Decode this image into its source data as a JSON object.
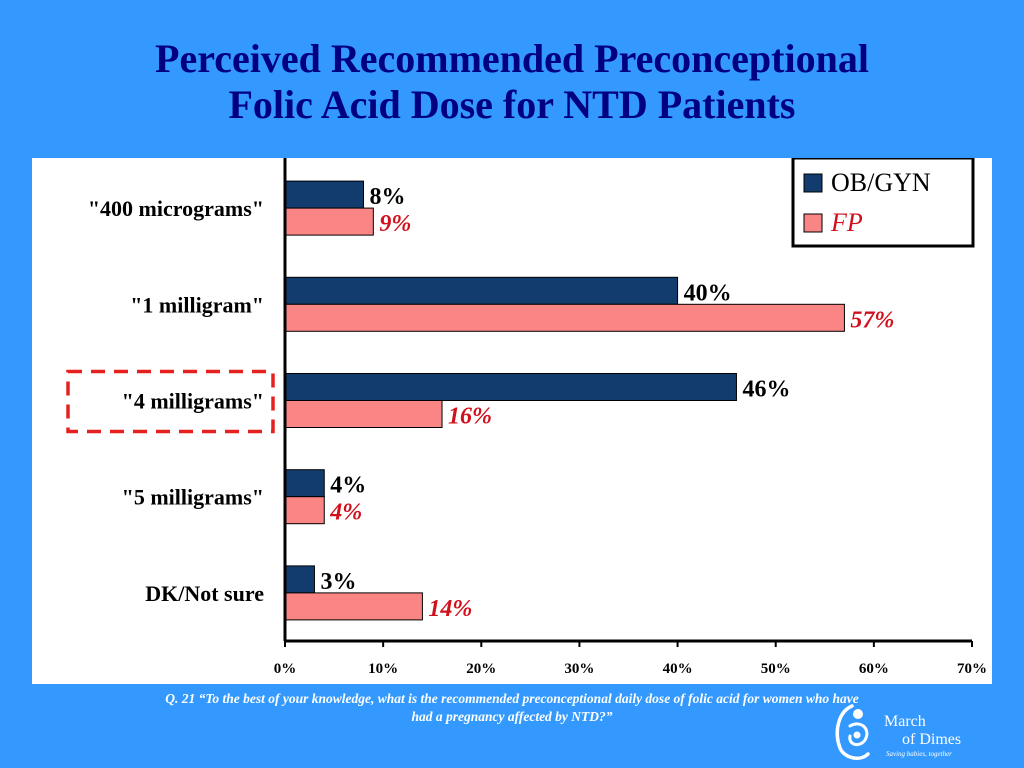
{
  "title_line1": "Perceived Recommended Preconceptional",
  "title_line2": "Folic Acid Dose for NTD Patients",
  "footnote_line1": "Q. 21  “To the best of your knowledge, what is the recommended preconceptional daily dose of folic acid for women who have",
  "footnote_line2": "had a pregnancy affected by NTD?”",
  "logo": {
    "name": "March of Dimes",
    "line1": "March",
    "line2": "of Dimes",
    "tagline": "Saving babies, together"
  },
  "colors": {
    "background": "#3399ff",
    "title": "#000080",
    "obgyn": "#123c6e",
    "fp": "#f98585",
    "fp_label": "#d0101c",
    "highlight": "#e6201e"
  },
  "chart_data": {
    "type": "bar",
    "orientation": "horizontal",
    "categories": [
      "\"400 micrograms\"",
      "\"1 milligram\"",
      "\"4 milligrams\"",
      "\"5 milligrams\"",
      "DK/Not sure"
    ],
    "series": [
      {
        "name": "OB/GYN",
        "values": [
          8,
          40,
          46,
          4,
          3
        ],
        "labels": [
          "8%",
          "40%",
          "46%",
          "4%",
          "3%"
        ]
      },
      {
        "name": "FP",
        "values": [
          9,
          57,
          16,
          4,
          14
        ],
        "labels": [
          "9%",
          "57%",
          "16%",
          "4%",
          "14%"
        ]
      }
    ],
    "xlim": [
      0,
      70
    ],
    "xticks": [
      "0%",
      "10%",
      "20%",
      "30%",
      "40%",
      "50%",
      "60%",
      "70%"
    ],
    "xlabel": "",
    "ylabel": "",
    "grid": false,
    "legend": "top-right",
    "highlighted_category": "\"4 milligrams\""
  }
}
